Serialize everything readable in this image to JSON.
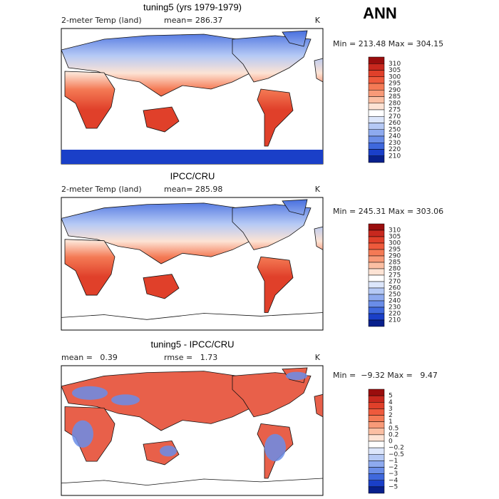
{
  "header": {
    "title": "ANN"
  },
  "panels": [
    {
      "title": "tuning5 (yrs 1979-1979)",
      "left_label": "2-meter Temp (land)",
      "center_label": "mean= 286.37",
      "units": "K",
      "stats": "Min = 213.48 Max = 304.15",
      "colorbar": {
        "labels": [
          "310",
          "305",
          "300",
          "295",
          "290",
          "285",
          "280",
          "275",
          "270",
          "260",
          "250",
          "240",
          "230",
          "220",
          "210"
        ],
        "colors": [
          "#9a0d0d",
          "#c8281e",
          "#e0402a",
          "#ee5a3c",
          "#f47a55",
          "#f89a78",
          "#fbbfa3",
          "#fde3d4",
          "#ffffff",
          "#dce6fb",
          "#b5c9f5",
          "#8eaaef",
          "#6a8de8",
          "#3f68dd",
          "#1a3fc8",
          "#08208c"
        ]
      }
    },
    {
      "title": "IPCC/CRU",
      "left_label": "2-meter Temp (land)",
      "center_label": "mean= 285.98",
      "units": "K",
      "stats": "Min = 245.31 Max = 303.06",
      "colorbar": {
        "labels": [
          "310",
          "305",
          "300",
          "295",
          "290",
          "285",
          "280",
          "275",
          "270",
          "260",
          "250",
          "240",
          "230",
          "220",
          "210"
        ],
        "colors": [
          "#9a0d0d",
          "#c8281e",
          "#e0402a",
          "#ee5a3c",
          "#f47a55",
          "#f89a78",
          "#fbbfa3",
          "#fde3d4",
          "#ffffff",
          "#dce6fb",
          "#b5c9f5",
          "#8eaaef",
          "#6a8de8",
          "#3f68dd",
          "#1a3fc8",
          "#08208c"
        ]
      }
    },
    {
      "title": "tuning5 - IPCC/CRU",
      "left_label": "mean =   0.39",
      "center_label": "rmse =   1.73",
      "units": "K",
      "stats": "Min =  −9.32 Max =   9.47",
      "colorbar": {
        "labels": [
          "5",
          "4",
          "3",
          "2",
          "1",
          "0.5",
          "0.2",
          "0",
          "−0.2",
          "−0.5",
          "−1",
          "−2",
          "−3",
          "−4",
          "−5"
        ],
        "colors": [
          "#9a0d0d",
          "#c8281e",
          "#e0402a",
          "#ee5a3c",
          "#f47a55",
          "#f89a78",
          "#fbbfa3",
          "#fde3d4",
          "#ffffff",
          "#dce6fb",
          "#b5c9f5",
          "#8eaaef",
          "#6a8de8",
          "#3f68dd",
          "#1a3fc8",
          "#08208c"
        ]
      }
    }
  ]
}
